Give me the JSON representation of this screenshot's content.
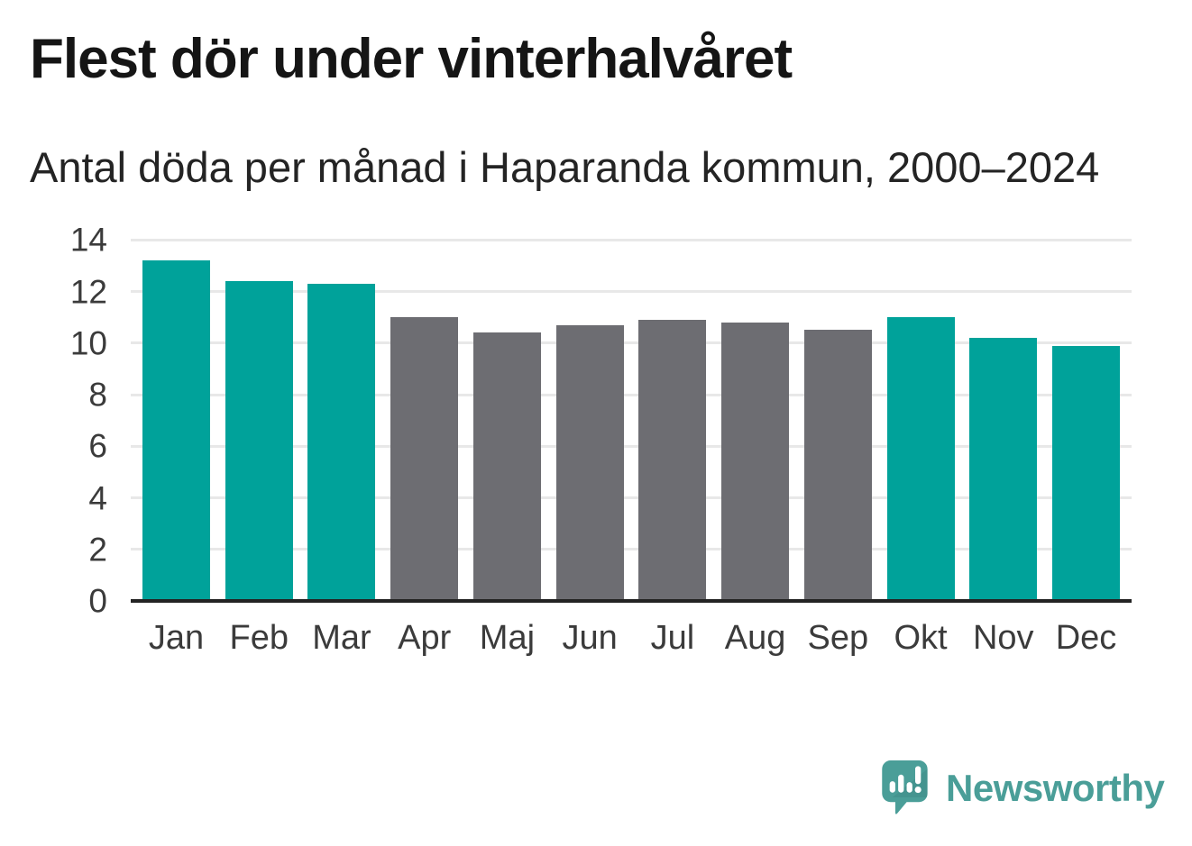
{
  "header": {
    "title": "Flest dör under vinterhalvåret",
    "subtitle": "Antal döda per månad i Haparanda kommun, 2000–2024"
  },
  "chart_data": {
    "type": "bar",
    "title": "Flest dör under vinterhalvåret",
    "subtitle": "Antal döda per månad i Haparanda kommun, 2000–2024",
    "categories": [
      "Jan",
      "Feb",
      "Mar",
      "Apr",
      "Maj",
      "Jun",
      "Jul",
      "Aug",
      "Sep",
      "Okt",
      "Nov",
      "Dec"
    ],
    "values": [
      13.2,
      12.4,
      12.3,
      11.0,
      10.4,
      10.7,
      10.9,
      10.8,
      10.5,
      11.0,
      10.2,
      9.9
    ],
    "bar_color_keys": [
      "winter",
      "winter",
      "winter",
      "other",
      "other",
      "other",
      "other",
      "other",
      "other",
      "winter",
      "winter",
      "winter"
    ],
    "colors": {
      "winter": "#00a29a",
      "other": "#6d6d72"
    },
    "highlighted_months": [
      "Jan",
      "Feb",
      "Mar",
      "Okt",
      "Nov",
      "Dec"
    ],
    "xlabel": "",
    "ylabel": "",
    "yticks": [
      0,
      2,
      4,
      6,
      8,
      10,
      12,
      14
    ],
    "ylim": [
      0,
      14.5
    ],
    "grid": "horizontal",
    "legend": "none"
  },
  "footer": {
    "brand": "Newsworthy",
    "brand_color": "#4a9e98",
    "logo": "newsworthy-speech-bubble-bar-chart-icon"
  },
  "style": {
    "background": "#ffffff",
    "grid_color": "#e8e8e8",
    "axis_color": "#232323",
    "tick_label_color": "#3b3b3b",
    "title_color": "#151515",
    "subtitle_color": "#242424"
  }
}
